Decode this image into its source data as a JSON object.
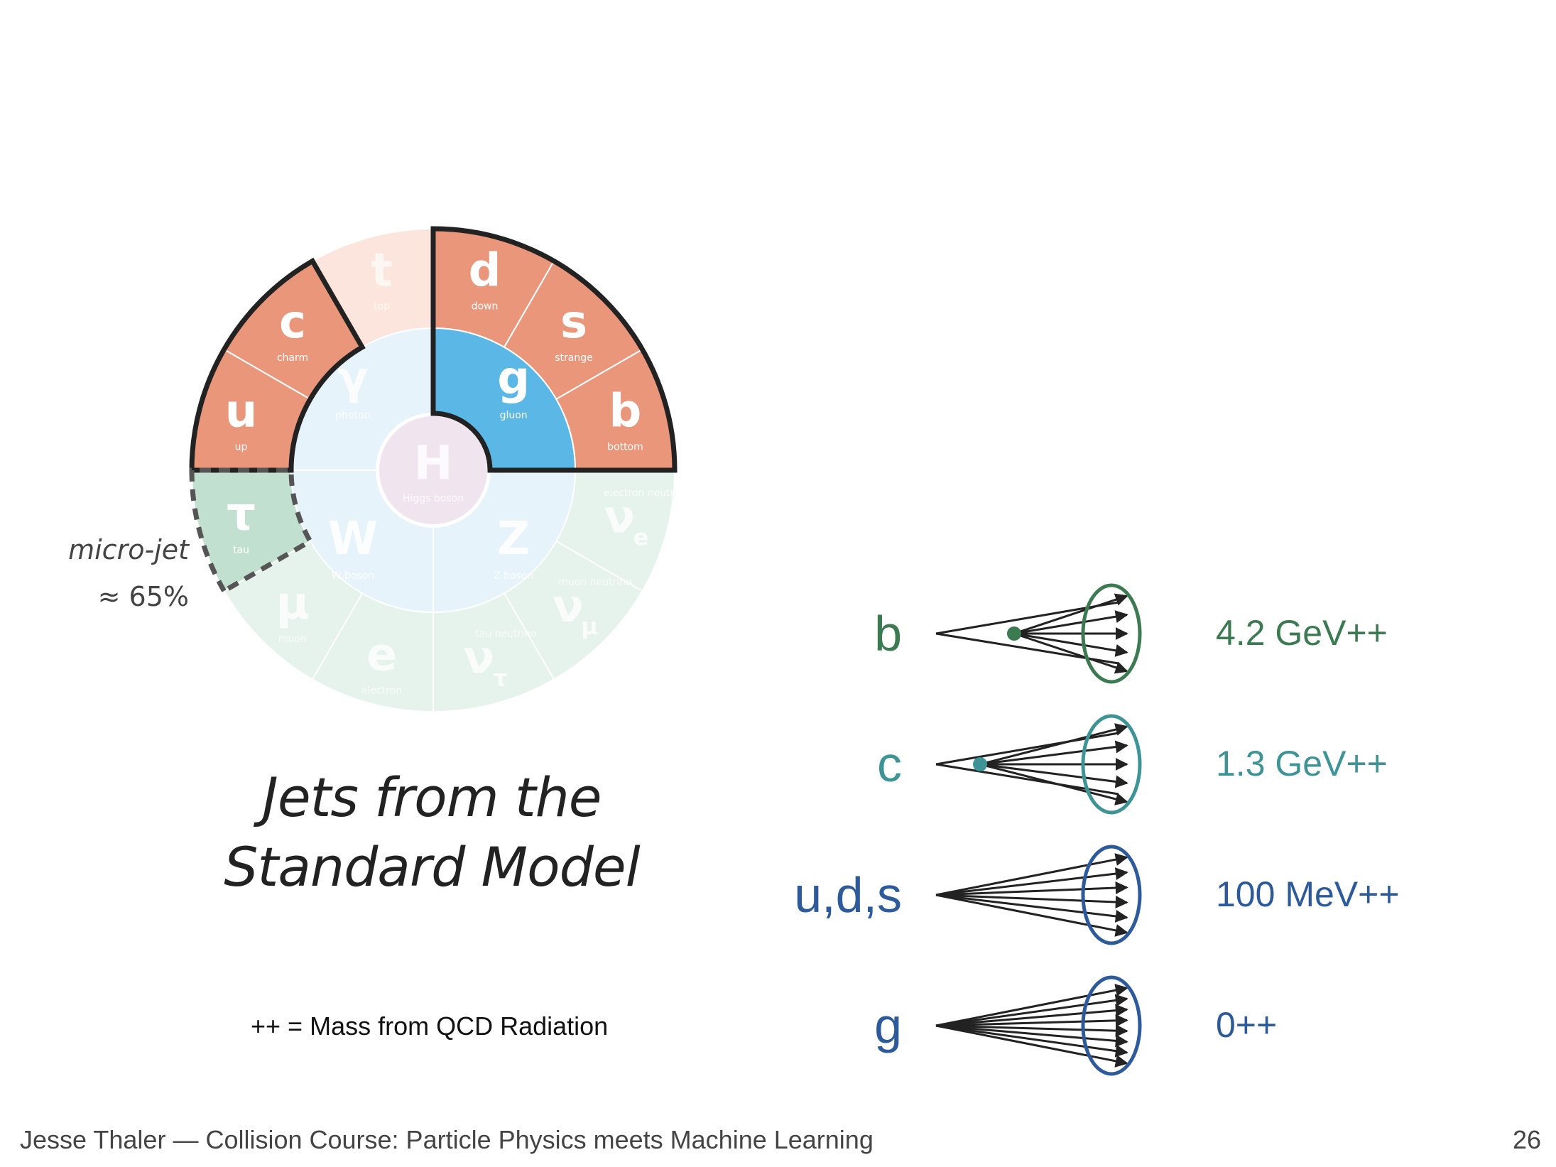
{
  "title_lines": [
    "Jets from the",
    "Standard Model"
  ],
  "microjet": {
    "line1": "micro-jet",
    "line2": "≈ 65%"
  },
  "legend_note": "++ = Mass from QCD Radiation",
  "footer": {
    "left": "Jesse Thaler — Collision Course:  Particle Physics meets Machine Learning",
    "page_number": "26"
  },
  "colors": {
    "quark_fill": "#e9967a",
    "quark_faded": "#fbe5dd",
    "gluon_fill": "#5bb7e5",
    "boson_faded": "#e6f3fb",
    "higgs_faded": "#f0e4ef",
    "lepton_faded": "#e5f3ec",
    "tau_fill": "#c2e0d0",
    "b_color": "#3c7a52",
    "c_color": "#3d9396",
    "light_color": "#2c5a9a",
    "g_color": "#2c5a9a"
  },
  "particles": {
    "d": {
      "symbol": "d",
      "name": "down"
    },
    "s": {
      "symbol": "s",
      "name": "strange"
    },
    "b": {
      "symbol": "b",
      "name": "bottom"
    },
    "c": {
      "symbol": "c",
      "name": "charm"
    },
    "u": {
      "symbol": "u",
      "name": "up"
    },
    "t": {
      "symbol": "t",
      "name": "top"
    },
    "g": {
      "symbol": "g",
      "name": "gluon"
    },
    "gamma": {
      "symbol": "γ",
      "name": "photon"
    },
    "H": {
      "symbol": "H",
      "name": "Higgs boson"
    },
    "W": {
      "symbol": "W",
      "name": "W boson"
    },
    "Z": {
      "symbol": "Z",
      "name": "Z boson"
    },
    "tau": {
      "symbol": "τ",
      "name": "tau"
    },
    "mu": {
      "symbol": "μ",
      "name": "muon"
    },
    "e": {
      "symbol": "e",
      "name": "electron"
    },
    "nu_tau": {
      "symbol": "ν",
      "sub": "τ",
      "name": "tau neutrino"
    },
    "nu_mu": {
      "symbol": "ν",
      "sub": "μ",
      "name": "muon neutrino"
    },
    "nu_e": {
      "symbol": "ν",
      "sub": "e",
      "name": "electron neutrino"
    }
  },
  "jets": [
    {
      "label": "b",
      "mass": "4.2 GeV++",
      "color": "#3c7a52",
      "prongs": 5
    },
    {
      "label": "c",
      "mass": "1.3 GeV++",
      "color": "#3d9396",
      "prongs": 5
    },
    {
      "label": "u,d,s",
      "mass": "100 MeV++",
      "color": "#2c5a9a",
      "prongs": 6
    },
    {
      "label": "g",
      "mass": "0++",
      "color": "#2c5a9a",
      "prongs": 8
    }
  ]
}
